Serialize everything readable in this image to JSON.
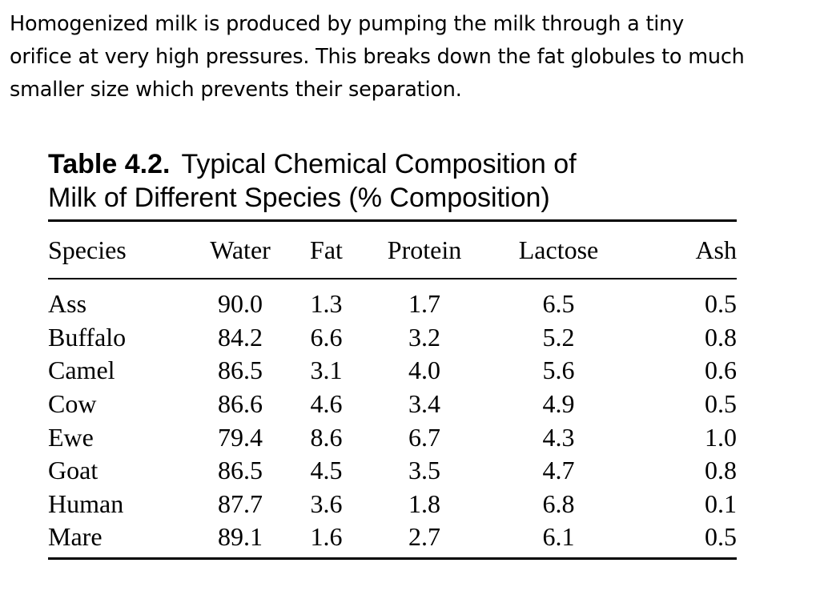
{
  "intro": {
    "lines": [
      "Homogenized milk is produced by pumping the milk through a tiny",
      "orifice at very high pressures. This breaks down the fat globules to much",
      "smaller size which prevents their separation."
    ]
  },
  "table": {
    "caption_number": "Table 4.2.",
    "caption_line1": "Typical Chemical Composition of",
    "caption_line2": "Milk of Different Species (% Composition)",
    "headers": [
      "Species",
      "Water",
      "Fat",
      "Protein",
      "Lactose",
      "Ash"
    ],
    "rows": [
      [
        "Ass",
        "90.0",
        "1.3",
        "1.7",
        "6.5",
        "0.5"
      ],
      [
        "Buffalo",
        "84.2",
        "6.6",
        "3.2",
        "5.2",
        "0.8"
      ],
      [
        "Camel",
        "86.5",
        "3.1",
        "4.0",
        "5.6",
        "0.6"
      ],
      [
        "Cow",
        "86.6",
        "4.6",
        "3.4",
        "4.9",
        "0.5"
      ],
      [
        "Ewe",
        "79.4",
        "8.6",
        "6.7",
        "4.3",
        "1.0"
      ],
      [
        "Goat",
        "86.5",
        "4.5",
        "3.5",
        "4.7",
        "0.8"
      ],
      [
        "Human",
        "87.7",
        "3.6",
        "1.8",
        "6.8",
        "0.1"
      ],
      [
        "Mare",
        "89.1",
        "1.6",
        "2.7",
        "6.1",
        "0.5"
      ]
    ]
  }
}
